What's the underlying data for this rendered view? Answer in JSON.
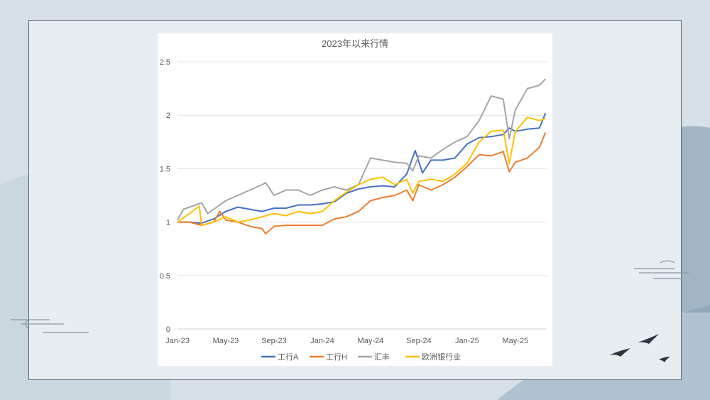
{
  "chart_data": {
    "type": "line",
    "title": "2023年以来行情",
    "xlabel": "",
    "ylabel": "",
    "ylim": [
      0,
      2.5
    ],
    "yticks": [
      "0",
      "0.5",
      "1",
      "1.5",
      "2",
      "2.5"
    ],
    "ytick_values": [
      0,
      0.5,
      1,
      1.5,
      2,
      2.5
    ],
    "xlim_months": [
      0,
      30.6
    ],
    "xticks": [
      "Jan-23",
      "May-23",
      "Sep-23",
      "Jan-24",
      "May-24",
      "Sep-24",
      "Jan-25",
      "May-25"
    ],
    "xtick_months": [
      0,
      4,
      8,
      12,
      16,
      20,
      24,
      28
    ],
    "grid": true,
    "legend_position": "bottom",
    "series": [
      {
        "name": "工行A",
        "color": "#4472c4",
        "x": [
          0,
          1,
          2,
          3,
          4,
          5,
          6,
          7,
          8,
          9,
          10,
          11,
          12,
          13,
          14,
          15,
          16,
          17,
          18,
          19,
          19.7,
          20.3,
          21,
          22,
          23,
          24,
          25,
          26,
          27,
          27.5,
          28,
          29,
          30,
          30.5
        ],
        "y": [
          1.0,
          1.0,
          0.99,
          1.03,
          1.1,
          1.14,
          1.12,
          1.1,
          1.13,
          1.13,
          1.16,
          1.16,
          1.17,
          1.19,
          1.27,
          1.31,
          1.33,
          1.34,
          1.33,
          1.45,
          1.67,
          1.46,
          1.58,
          1.58,
          1.6,
          1.73,
          1.79,
          1.8,
          1.82,
          1.88,
          1.85,
          1.87,
          1.88,
          2.02
        ]
      },
      {
        "name": "工行H",
        "color": "#ed7d31",
        "x": [
          0,
          1,
          2,
          3,
          3.5,
          4,
          5,
          6,
          7,
          7.3,
          8,
          9,
          10,
          11,
          12,
          13,
          14,
          15,
          16,
          17,
          18,
          19,
          19.5,
          20,
          21,
          22,
          23,
          24,
          25,
          26,
          27,
          27.5,
          28,
          29,
          30,
          30.5
        ],
        "y": [
          1.0,
          1.0,
          0.97,
          1.0,
          1.1,
          1.02,
          1.0,
          0.96,
          0.94,
          0.89,
          0.96,
          0.97,
          0.97,
          0.97,
          0.97,
          1.03,
          1.05,
          1.1,
          1.2,
          1.23,
          1.25,
          1.3,
          1.2,
          1.35,
          1.3,
          1.35,
          1.42,
          1.52,
          1.63,
          1.62,
          1.66,
          1.47,
          1.56,
          1.6,
          1.7,
          1.84
        ]
      },
      {
        "name": "汇丰",
        "color": "#a5a5a5",
        "x": [
          0,
          0.5,
          1,
          2,
          2.5,
          3,
          4,
          5,
          6,
          7,
          7.3,
          8,
          9,
          10,
          11,
          12,
          13,
          14,
          15,
          16,
          17,
          18,
          19,
          19.5,
          20,
          21,
          22,
          23,
          24,
          25,
          26,
          27,
          27.5,
          28,
          29,
          30,
          30.5
        ],
        "y": [
          1.02,
          1.12,
          1.14,
          1.18,
          1.08,
          1.12,
          1.2,
          1.25,
          1.3,
          1.35,
          1.37,
          1.25,
          1.3,
          1.3,
          1.25,
          1.3,
          1.33,
          1.3,
          1.35,
          1.6,
          1.58,
          1.56,
          1.55,
          1.48,
          1.62,
          1.6,
          1.68,
          1.75,
          1.8,
          1.95,
          2.18,
          2.15,
          1.78,
          2.05,
          2.25,
          2.28,
          2.34
        ]
      },
      {
        "name": "欧洲银行业",
        "color": "#ffc000",
        "x": [
          0,
          1,
          1.8,
          2,
          3,
          4,
          5,
          6,
          7,
          8,
          9,
          10,
          11,
          12,
          13,
          14,
          15,
          16,
          17,
          18,
          19,
          19.5,
          20,
          21,
          22,
          23,
          24,
          25,
          26,
          27,
          27.5,
          28,
          29,
          30,
          30.5
        ],
        "y": [
          1.0,
          1.08,
          1.15,
          0.97,
          1.0,
          1.05,
          1.0,
          1.02,
          1.05,
          1.08,
          1.06,
          1.1,
          1.08,
          1.1,
          1.2,
          1.28,
          1.35,
          1.4,
          1.42,
          1.35,
          1.4,
          1.27,
          1.38,
          1.4,
          1.38,
          1.45,
          1.55,
          1.75,
          1.85,
          1.86,
          1.55,
          1.85,
          1.98,
          1.95,
          1.97
        ]
      }
    ]
  }
}
